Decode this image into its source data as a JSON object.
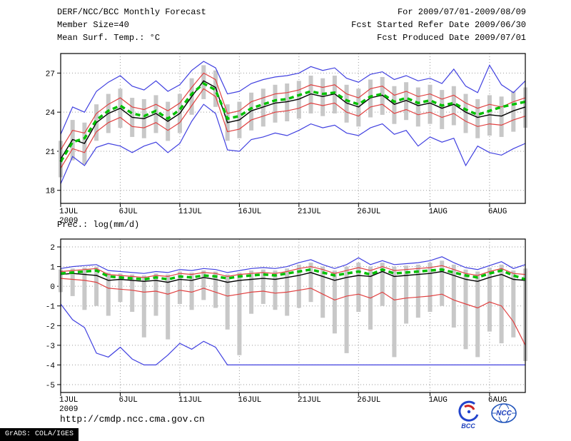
{
  "header": {
    "title": "DERF/NCC/BCC Monthly Forecast",
    "member_size": "Member Size=40",
    "for_range": "For 2009/07/01-2009/08/09",
    "refer_date": "Fcst Started Refer Date 2009/06/30",
    "produced_date": "Fcst Produced Date 2009/07/01"
  },
  "footer": {
    "url": "http://cmdp.ncc.cma.gov.cn",
    "grads_credit": "GrADS: COLA/IGES",
    "logos": [
      {
        "name": "bcc-logo",
        "label": "BCC"
      },
      {
        "name": "ncc-logo",
        "label": "NCC"
      }
    ]
  },
  "chart_data": [
    {
      "type": "line",
      "title": "Mean Surf. Temp.: °C",
      "n_days": 40,
      "x_year_label": "2009",
      "x_tick_labels": [
        "1JUL",
        "6JUL",
        "11JUL",
        "16JUL",
        "21JUL",
        "26JUL",
        "1AUG",
        "6AUG"
      ],
      "x_tick_days": [
        0,
        5,
        10,
        15,
        20,
        25,
        31,
        36
      ],
      "ylim": [
        17.0,
        28.5
      ],
      "yticks": [
        18,
        21,
        24,
        27
      ],
      "grid": "dotted",
      "bars": {
        "name": "ensemble-spread-bar",
        "color": "#c8c8c8",
        "hi": [
          21.8,
          23.4,
          23.2,
          24.6,
          25.4,
          25.8,
          25.1,
          25.0,
          25.3,
          24.8,
          25.4,
          26.6,
          27.6,
          27.2,
          24.6,
          24.8,
          25.5,
          25.8,
          26.1,
          26.2,
          26.4,
          26.8,
          26.6,
          26.8,
          26.1,
          25.8,
          26.5,
          26.7,
          26.0,
          26.3,
          25.9,
          26.1,
          25.7,
          26.0,
          25.4,
          25.0,
          25.3,
          25.2,
          25.6,
          25.9
        ],
        "lo": [
          19.0,
          20.3,
          20.0,
          21.8,
          22.4,
          22.8,
          22.1,
          22.0,
          22.4,
          21.8,
          22.4,
          23.8,
          25.0,
          24.4,
          21.8,
          22.0,
          22.6,
          22.9,
          23.2,
          23.3,
          23.5,
          23.9,
          23.7,
          23.9,
          23.2,
          22.9,
          23.6,
          23.8,
          23.1,
          23.4,
          22.9,
          23.1,
          22.7,
          23.0,
          22.4,
          22.0,
          22.2,
          22.1,
          22.5,
          22.8
        ]
      },
      "series": [
        {
          "name": "ensemble-max",
          "color": "#4040e0",
          "values": [
            22.3,
            24.4,
            24.0,
            25.6,
            26.3,
            26.8,
            26.0,
            25.7,
            26.4,
            25.6,
            26.1,
            27.2,
            27.9,
            27.4,
            25.4,
            25.6,
            26.2,
            26.5,
            26.7,
            26.8,
            27.0,
            27.5,
            27.2,
            27.4,
            26.6,
            26.3,
            26.9,
            27.1,
            26.5,
            26.8,
            26.4,
            26.6,
            26.2,
            27.3,
            26.0,
            25.5,
            27.6,
            26.1,
            25.5,
            26.4
          ]
        },
        {
          "name": "ensemble-min",
          "color": "#4040e0",
          "values": [
            18.5,
            20.6,
            19.9,
            21.3,
            21.6,
            21.4,
            20.9,
            21.4,
            21.7,
            20.9,
            21.6,
            23.3,
            24.6,
            23.9,
            21.1,
            21.0,
            21.9,
            22.1,
            22.4,
            22.2,
            22.6,
            23.1,
            22.8,
            23.0,
            22.4,
            22.2,
            22.8,
            23.1,
            22.3,
            22.6,
            21.4,
            22.1,
            21.7,
            22.0,
            19.9,
            21.4,
            20.9,
            20.7,
            21.2,
            21.6
          ]
        },
        {
          "name": "spread-upper",
          "color": "#e04040",
          "values": [
            21.1,
            22.6,
            22.4,
            23.9,
            24.6,
            25.1,
            24.4,
            24.2,
            24.6,
            24.1,
            24.7,
            25.9,
            27.0,
            26.5,
            23.9,
            24.1,
            24.8,
            25.1,
            25.4,
            25.5,
            25.7,
            26.1,
            25.9,
            26.1,
            25.4,
            25.1,
            25.8,
            26.0,
            25.3,
            25.6,
            25.2,
            25.4,
            25.0,
            25.3,
            24.7,
            24.3,
            24.6,
            24.4,
            24.8,
            25.1
          ]
        },
        {
          "name": "spread-lower",
          "color": "#e04040",
          "values": [
            19.7,
            21.2,
            20.9,
            22.5,
            23.2,
            23.6,
            22.9,
            22.8,
            23.2,
            22.6,
            23.2,
            24.5,
            25.8,
            25.2,
            22.5,
            22.7,
            23.4,
            23.7,
            24.0,
            24.1,
            24.3,
            24.7,
            24.5,
            24.7,
            24.0,
            23.7,
            24.4,
            24.6,
            23.9,
            24.2,
            23.8,
            24.0,
            23.6,
            23.9,
            23.3,
            22.9,
            23.1,
            23.0,
            23.4,
            23.7
          ]
        },
        {
          "name": "ensemble-mean",
          "color": "#000000",
          "values": [
            20.4,
            21.9,
            21.6,
            23.2,
            23.9,
            24.3,
            23.6,
            23.5,
            23.9,
            23.3,
            23.9,
            25.2,
            26.4,
            25.9,
            23.2,
            23.4,
            24.1,
            24.4,
            24.7,
            24.8,
            25.0,
            25.4,
            25.2,
            25.4,
            24.7,
            24.4,
            25.1,
            25.3,
            24.6,
            24.9,
            24.5,
            24.7,
            24.3,
            24.6,
            24.0,
            23.6,
            23.8,
            23.7,
            24.1,
            24.4
          ]
        },
        {
          "name": "forecast-median-dashed",
          "color": "#00c000",
          "dashed": true,
          "values": [
            20.2,
            21.7,
            22.0,
            23.4,
            24.1,
            24.5,
            23.9,
            23.7,
            24.1,
            23.5,
            24.2,
            25.4,
            26.2,
            25.7,
            23.5,
            23.7,
            24.3,
            24.6,
            24.9,
            25.0,
            25.3,
            25.6,
            25.4,
            25.5,
            24.9,
            24.6,
            25.2,
            25.4,
            24.8,
            25.1,
            24.7,
            24.9,
            24.5,
            24.7,
            24.2,
            23.8,
            24.1,
            24.4,
            24.6,
            24.8
          ]
        }
      ]
    },
    {
      "type": "line",
      "title": "Prec.: log(mm/d)",
      "n_days": 40,
      "x_year_label": "2009",
      "x_tick_labels": [
        "1JUL",
        "6JUL",
        "11JUL",
        "16JUL",
        "21JUL",
        "26JUL",
        "1AUG",
        "6AUG"
      ],
      "x_tick_days": [
        0,
        5,
        10,
        15,
        20,
        25,
        31,
        36
      ],
      "ylim": [
        -5.4,
        2.4
      ],
      "yticks": [
        2,
        1,
        0,
        -1,
        -2,
        -3,
        -4,
        -5
      ],
      "grid": "dotted",
      "bars": {
        "name": "ensemble-spread-bar",
        "color": "#c8c8c8",
        "hi": [
          0.85,
          0.9,
          0.95,
          1.0,
          0.7,
          0.65,
          0.6,
          0.55,
          0.65,
          0.6,
          0.75,
          0.7,
          0.8,
          0.75,
          0.6,
          0.7,
          0.8,
          0.85,
          0.8,
          0.9,
          1.1,
          1.2,
          1.0,
          0.8,
          1.0,
          1.2,
          1.0,
          1.2,
          1.0,
          1.05,
          1.1,
          1.2,
          1.3,
          1.1,
          0.85,
          0.75,
          0.95,
          1.1,
          0.8,
          0.9
        ],
        "lo": [
          -0.3,
          -0.5,
          -1.2,
          -1.0,
          -1.5,
          -0.8,
          -1.3,
          -2.6,
          -1.5,
          -2.7,
          -0.9,
          -1.2,
          -0.7,
          -1.1,
          -2.2,
          -3.5,
          -1.4,
          -0.9,
          -1.2,
          -1.5,
          -1.1,
          -0.8,
          -1.6,
          -2.4,
          -3.4,
          -1.3,
          -2.2,
          -1.0,
          -3.6,
          -1.9,
          -1.6,
          -1.3,
          -1.0,
          -2.1,
          -3.2,
          -3.6,
          -2.3,
          -2.9,
          -2.6,
          -3.8
        ]
      },
      "series": [
        {
          "name": "ensemble-max",
          "color": "#4040e0",
          "values": [
            0.9,
            1.0,
            1.05,
            1.1,
            0.8,
            0.75,
            0.7,
            0.65,
            0.75,
            0.7,
            0.85,
            0.8,
            0.9,
            0.85,
            0.7,
            0.8,
            0.9,
            0.95,
            0.9,
            1.0,
            1.2,
            1.35,
            1.1,
            0.9,
            1.1,
            1.45,
            1.1,
            1.3,
            1.1,
            1.15,
            1.2,
            1.3,
            1.5,
            1.2,
            0.95,
            0.85,
            1.05,
            1.25,
            0.9,
            1.1
          ]
        },
        {
          "name": "ensemble-min",
          "color": "#4040e0",
          "values": [
            -0.9,
            -1.7,
            -2.1,
            -3.4,
            -3.6,
            -3.1,
            -3.7,
            -4.0,
            -4.0,
            -3.5,
            -2.9,
            -3.2,
            -2.8,
            -3.1,
            -4.0,
            -4.0,
            -4.0,
            -4.0,
            -4.0,
            -4.0,
            -4.0,
            -4.0,
            -4.0,
            -4.0,
            -4.0,
            -4.0,
            -4.0,
            -4.0,
            -4.0,
            -4.0,
            -4.0,
            -4.0,
            -4.0,
            -4.0,
            -4.0,
            -4.0,
            -4.0,
            -4.0,
            -4.0,
            -4.0
          ]
        },
        {
          "name": "spread-upper",
          "color": "#e04040",
          "values": [
            0.75,
            0.8,
            0.85,
            0.9,
            0.6,
            0.55,
            0.5,
            0.45,
            0.55,
            0.5,
            0.65,
            0.6,
            0.7,
            0.65,
            0.5,
            0.6,
            0.65,
            0.7,
            0.65,
            0.75,
            0.9,
            1.0,
            0.85,
            0.65,
            0.8,
            0.95,
            0.8,
            1.0,
            0.8,
            0.85,
            0.9,
            0.95,
            1.05,
            0.85,
            0.65,
            0.55,
            0.75,
            0.9,
            0.65,
            0.6
          ]
        },
        {
          "name": "spread-lower",
          "color": "#e04040",
          "values": [
            0.4,
            0.35,
            0.3,
            0.2,
            -0.1,
            -0.15,
            -0.2,
            -0.3,
            -0.25,
            -0.4,
            -0.2,
            -0.3,
            -0.1,
            -0.3,
            -0.5,
            -0.4,
            -0.3,
            -0.25,
            -0.35,
            -0.3,
            -0.2,
            -0.1,
            -0.4,
            -0.7,
            -0.5,
            -0.4,
            -0.6,
            -0.3,
            -0.7,
            -0.6,
            -0.55,
            -0.5,
            -0.4,
            -0.7,
            -0.9,
            -1.1,
            -0.8,
            -1.0,
            -1.8,
            -3.0
          ]
        },
        {
          "name": "ensemble-mean",
          "color": "#000000",
          "values": [
            0.6,
            0.65,
            0.6,
            0.55,
            0.3,
            0.35,
            0.3,
            0.25,
            0.3,
            0.2,
            0.35,
            0.3,
            0.45,
            0.35,
            0.2,
            0.3,
            0.35,
            0.4,
            0.35,
            0.45,
            0.55,
            0.7,
            0.5,
            0.3,
            0.45,
            0.55,
            0.5,
            0.75,
            0.5,
            0.55,
            0.6,
            0.65,
            0.75,
            0.55,
            0.35,
            0.25,
            0.45,
            0.6,
            0.35,
            0.3
          ]
        },
        {
          "name": "forecast-median-dashed",
          "color": "#00c000",
          "dashed": true,
          "values": [
            0.65,
            0.7,
            0.75,
            0.8,
            0.5,
            0.45,
            0.4,
            0.35,
            0.45,
            0.35,
            0.5,
            0.45,
            0.55,
            0.5,
            0.4,
            0.5,
            0.55,
            0.6,
            0.55,
            0.65,
            0.75,
            0.85,
            0.7,
            0.55,
            0.65,
            0.75,
            0.6,
            0.85,
            0.65,
            0.7,
            0.75,
            0.8,
            0.85,
            0.7,
            0.55,
            0.45,
            0.65,
            0.8,
            0.55,
            0.35
          ]
        }
      ]
    }
  ]
}
